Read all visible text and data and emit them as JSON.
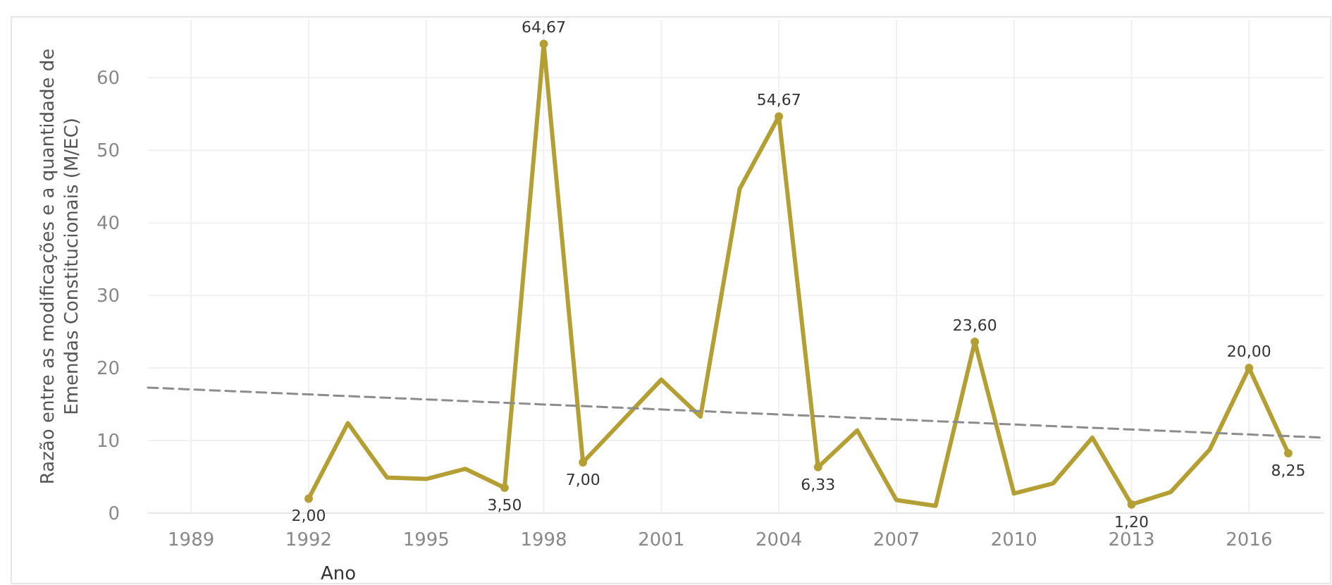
{
  "chart_data": {
    "type": "line",
    "xlabel": "Ano",
    "ylabel": "Razão entre as modificações e a quantidade de\nEmendas Constitucionais (M/EC)",
    "x": [
      1992,
      1993,
      1994,
      1995,
      1996,
      1997,
      1998,
      1999,
      2000,
      2001,
      2002,
      2003,
      2004,
      2005,
      2006,
      2007,
      2008,
      2009,
      2010,
      2011,
      2012,
      2013,
      2014,
      2015,
      2016,
      2017
    ],
    "series": [
      {
        "color": "#b39f34",
        "values": [
          2.0,
          12.4,
          4.9,
          4.7,
          6.1,
          3.5,
          64.67,
          7.0,
          12.7,
          18.4,
          13.3,
          44.7,
          54.67,
          6.33,
          11.4,
          1.8,
          1.0,
          23.6,
          2.7,
          4.1,
          10.4,
          1.2,
          2.9,
          8.8,
          20.0,
          8.25
        ],
        "value_labels": [
          "2,00",
          null,
          null,
          null,
          null,
          "3,50",
          "64,67",
          "7,00",
          null,
          null,
          null,
          null,
          "54,67",
          "6,33",
          null,
          null,
          null,
          "23,60",
          null,
          null,
          null,
          "1,20",
          null,
          null,
          "20,00",
          "8,25"
        ]
      },
      {
        "color": "#8c8c8c",
        "line_style": "dashed",
        "x": [
          1987.9,
          2017.9
        ],
        "values": [
          17.3,
          10.4
        ]
      }
    ],
    "xlim": [
      1987.9,
      2017.9
    ],
    "xticks": [
      1989,
      1992,
      1995,
      1998,
      2001,
      2004,
      2007,
      2010,
      2013,
      2016
    ],
    "ylim": [
      0,
      68
    ],
    "yticks": [
      0,
      10,
      20,
      30,
      40,
      50,
      60
    ],
    "grid": true
  }
}
